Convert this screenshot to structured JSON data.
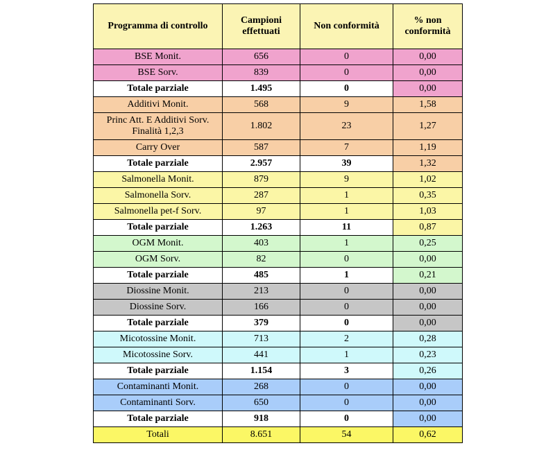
{
  "header": [
    "Programma di controllo",
    "Campioni effettuati",
    "Non conformità",
    "% non conformità"
  ],
  "groups": [
    {
      "color": "#f0a3cd",
      "rows": [
        [
          "BSE   Monit.",
          "656",
          "0",
          "0,00"
        ],
        [
          "BSE   Sorv.",
          "839",
          "0",
          "0,00"
        ]
      ],
      "subtotal": [
        "Totale parziale",
        "1.495",
        "0",
        "0,00"
      ]
    },
    {
      "color": "#f8cfa6",
      "rows": [
        [
          "Additivi   Monit.",
          "568",
          "9",
          "1,58"
        ],
        [
          "Princ Att. E Additivi Sorv. Finalità 1,2,3",
          "1.802",
          "23",
          "1,27"
        ],
        [
          "Carry Over",
          "587",
          "7",
          "1,19"
        ]
      ],
      "subtotal": [
        "Totale parziale",
        "2.957",
        "39",
        "1,32"
      ]
    },
    {
      "color": "#fbf6a6",
      "rows": [
        [
          "Salmonella Monit.",
          "879",
          "9",
          "1,02"
        ],
        [
          "Salmonella Sorv.",
          "287",
          "1",
          "0,35"
        ],
        [
          "Salmonella pet-f Sorv.",
          "97",
          "1",
          "1,03"
        ]
      ],
      "subtotal": [
        "Totale parziale",
        "1.263",
        "11",
        "0,87"
      ]
    },
    {
      "color": "#d3f7cd",
      "rows": [
        [
          "OGM Monit.",
          "403",
          "1",
          "0,25"
        ],
        [
          "OGM Sorv.",
          "82",
          "0",
          "0,00"
        ]
      ],
      "subtotal": [
        "Totale parziale",
        "485",
        "1",
        "0,21"
      ]
    },
    {
      "color": "#c6c6c6",
      "rows": [
        [
          "Diossine Monit.",
          "213",
          "0",
          "0,00"
        ],
        [
          "Diossine Sorv.",
          "166",
          "0",
          "0,00"
        ]
      ],
      "subtotal": [
        "Totale parziale",
        "379",
        "0",
        "0,00"
      ]
    },
    {
      "color": "#cff9fb",
      "rows": [
        [
          "Micotossine Monit.",
          "713",
          "2",
          "0,28"
        ],
        [
          "Micotossine Sorv.",
          "441",
          "1",
          "0,23"
        ]
      ],
      "subtotal": [
        "Totale parziale",
        "1.154",
        "3",
        "0,26"
      ]
    },
    {
      "color": "#a9cdfa",
      "rows": [
        [
          "Contaminanti Monit.",
          "268",
          "0",
          "0,00"
        ],
        [
          "Contaminanti Sorv.",
          "650",
          "0",
          "0,00"
        ]
      ],
      "subtotal": [
        "Totale parziale",
        "918",
        "0",
        "0,00"
      ]
    }
  ],
  "total": [
    "Totali",
    "8.651",
    "54",
    "0,62"
  ]
}
